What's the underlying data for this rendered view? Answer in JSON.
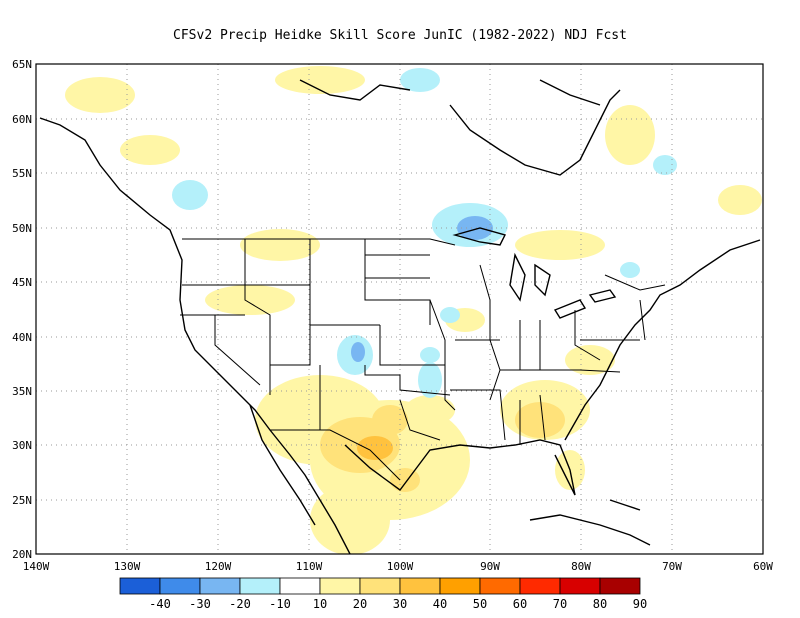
{
  "title": "CFSv2 Precip Heidke Skill Score JunIC (1982-2022) NDJ Fcst",
  "map": {
    "lat_labels": [
      "65N",
      "60N",
      "55N",
      "50N",
      "45N",
      "40N",
      "35N",
      "30N",
      "25N",
      "20N"
    ],
    "lon_labels": [
      "140W",
      "130W",
      "120W",
      "110W",
      "100W",
      "90W",
      "80W",
      "70W",
      "60W"
    ]
  },
  "colorbar": {
    "colors": [
      "#1b5fd8",
      "#3f8bea",
      "#78b6f2",
      "#b4f0fa",
      "#ffffff",
      "#fff6a6",
      "#ffe27a",
      "#ffc23e",
      "#ffa000",
      "#ff6a00",
      "#ff2a00",
      "#d80000",
      "#a80000"
    ],
    "labels": [
      "-40",
      "-30",
      "-20",
      "-10",
      "10",
      "20",
      "30",
      "40",
      "50",
      "60",
      "70",
      "80",
      "90"
    ]
  }
}
